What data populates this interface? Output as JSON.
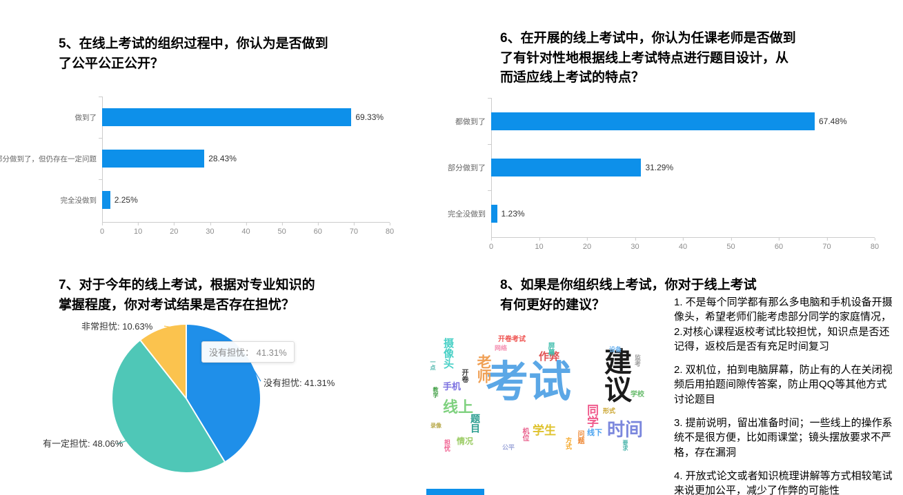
{
  "page": {
    "background": "#ffffff"
  },
  "chart_data": [
    {
      "id": "q5",
      "type": "bar",
      "orientation": "horizontal",
      "title": "5、在线上考试的组织过程中，你认为是否做到\n了公平公正公开？",
      "categories": [
        "做到了",
        "部分做到了，但仍存在一定问题",
        "完全没做到"
      ],
      "values": [
        69.33,
        28.43,
        2.25
      ],
      "value_labels": [
        "69.33%",
        "28.43%",
        "2.25%"
      ],
      "xlim": [
        0,
        80
      ],
      "xticks": [
        "0",
        "10",
        "20",
        "30",
        "40",
        "50",
        "60",
        "70",
        "80"
      ],
      "grid": false,
      "bar_color": "#0d90ea"
    },
    {
      "id": "q6",
      "type": "bar",
      "orientation": "horizontal",
      "title": "6、在开展的线上考试中，你认为任课老师是否做到\n了有针对性地根据线上考试特点进行题目设计，从\n而适应线上考试的特点？",
      "categories": [
        "都做到了",
        "部分做到了",
        "完全没做到"
      ],
      "values": [
        67.48,
        31.29,
        1.23
      ],
      "value_labels": [
        "67.48%",
        "31.29%",
        "1.23%"
      ],
      "xlim": [
        0,
        80
      ],
      "xticks": [
        "0",
        "10",
        "20",
        "30",
        "40",
        "50",
        "60",
        "70",
        "80"
      ],
      "grid": false,
      "bar_color": "#0d90ea"
    },
    {
      "id": "q7",
      "type": "pie",
      "title": "7、对于今年的线上考试，根据对专业知识的\n掌握程度，你对考试结果是否存在担忧？",
      "slices": [
        {
          "label": "没有担忧",
          "value": 41.31,
          "display": "没有担忧: 41.31%",
          "color": "#1f8fe9"
        },
        {
          "label": "有一定担忧",
          "value": 48.06,
          "display": "有一定担忧: 48.06%",
          "color": "#4fc7b7"
        },
        {
          "label": "非常担忧",
          "value": 10.63,
          "display": "非常担忧: 10.63%",
          "color": "#fbc34e"
        }
      ],
      "start_angle_deg": 0,
      "tooltip": "没有担忧： 41.31%"
    },
    {
      "id": "q8",
      "type": "wordcloud",
      "title": "8、如果是你组织线上考试，你对于线上考试\n有何更好的建议？",
      "words": [
        {
          "text": "考试",
          "x": 86,
          "y": 46,
          "size": 62,
          "color": "#5ba7e6",
          "vertical": false
        },
        {
          "text": "建议",
          "x": 254,
          "y": 26,
          "size": 40,
          "color": "#1b1b1b",
          "vertical": true
        },
        {
          "text": "时间",
          "x": 262,
          "y": 132,
          "size": 26,
          "color": "#7b87dd",
          "vertical": false
        },
        {
          "text": "老师",
          "x": 72,
          "y": 36,
          "size": 21,
          "color": "#f0a055",
          "vertical": true
        },
        {
          "text": "线上",
          "x": 24,
          "y": 102,
          "size": 22,
          "color": "#7fd17f",
          "vertical": false
        },
        {
          "text": "同学",
          "x": 231,
          "y": 108,
          "size": 17,
          "color": "#f05a8c",
          "vertical": true
        },
        {
          "text": "学生",
          "x": 154,
          "y": 138,
          "size": 17,
          "color": "#dfc22c",
          "vertical": false
        },
        {
          "text": "作弊",
          "x": 163,
          "y": 32,
          "size": 15,
          "color": "#e05252",
          "vertical": false
        },
        {
          "text": "摄像头",
          "x": 24,
          "y": 12,
          "size": 15,
          "color": "#49d0c6",
          "vertical": true
        },
        {
          "text": "手机",
          "x": 24,
          "y": 76,
          "size": 13,
          "color": "#7b70e0",
          "vertical": false
        },
        {
          "text": "题目",
          "x": 64,
          "y": 122,
          "size": 14,
          "color": "#2a9d8f",
          "vertical": true
        },
        {
          "text": "开卷考试",
          "x": 104,
          "y": 10,
          "size": 10,
          "color": "#ef5350",
          "vertical": false
        },
        {
          "text": "网络",
          "x": 99,
          "y": 23,
          "size": 9,
          "color": "#f48fb1",
          "vertical": false
        },
        {
          "text": "情况",
          "x": 44,
          "y": 156,
          "size": 12,
          "color": "#9ccc65",
          "vertical": false
        },
        {
          "text": "公平",
          "x": 110,
          "y": 167,
          "size": 9,
          "color": "#9fa8da",
          "vertical": false
        },
        {
          "text": "线下",
          "x": 233,
          "y": 145,
          "size": 11,
          "color": "#4aa3f0",
          "vertical": false
        },
        {
          "text": "形式",
          "x": 256,
          "y": 114,
          "size": 9,
          "color": "#c9a227",
          "vertical": false
        },
        {
          "text": "设备",
          "x": 265,
          "y": 25,
          "size": 9,
          "color": "#6bb2ef",
          "vertical": false
        },
        {
          "text": "学校",
          "x": 296,
          "y": 90,
          "size": 10,
          "color": "#66bb6a",
          "vertical": false
        },
        {
          "text": "开卷",
          "x": 49,
          "y": 57,
          "size": 10,
          "color": "#3a3a3a",
          "vertical": true
        },
        {
          "text": "录像",
          "x": 6,
          "y": 136,
          "size": 8,
          "color": "#b8a94a",
          "vertical": false
        },
        {
          "text": "担忧",
          "x": 25,
          "y": 159,
          "size": 9,
          "color": "#f06292",
          "vertical": true
        },
        {
          "text": "机位",
          "x": 137,
          "y": 142,
          "size": 10,
          "color": "#e85d8a",
          "vertical": true
        },
        {
          "text": "方式",
          "x": 201,
          "y": 156,
          "size": 9,
          "color": "#f5a623",
          "vertical": true
        },
        {
          "text": "问题",
          "x": 217,
          "y": 146,
          "size": 10,
          "color": "#ef8b3a",
          "vertical": true
        },
        {
          "text": "监考",
          "x": 301,
          "y": 36,
          "size": 9,
          "color": "#9e9e9e",
          "vertical": true
        },
        {
          "text": "一点",
          "x": 5,
          "y": 43,
          "size": 8,
          "color": "#4db6ac",
          "vertical": true
        },
        {
          "text": "教学",
          "x": 9,
          "y": 83,
          "size": 8,
          "color": "#43a047",
          "vertical": true
        },
        {
          "text": "屏幕",
          "x": 174,
          "y": 18,
          "size": 10,
          "color": "#46c0b0",
          "vertical": true
        },
        {
          "text": "要求",
          "x": 284,
          "y": 160,
          "size": 8,
          "color": "#4db6ac",
          "vertical": true
        }
      ],
      "answers": [
        "1. 不是每个同学都有那么多电脑和手机设备开摄像头，希望老师们能考虑部分同学的家庭情况，2.对核心课程返校考试比较担忧，知识点是否还记得，返校后是否有充足时间复习",
        "2. 双机位，拍到电脑屏幕，防止有的人在关闭视频后用拍题间隙传答案，防止用QQ等其他方式讨论题目",
        "3. 提前说明，留出准备时间；一些线上的操作系统不是很方便，比如雨课堂；镜头摆放要求不严格，存在漏洞",
        "4. 开放式论文或者知识梳理讲解等方式相较笔试来说更加公平，减少了作弊的可能性"
      ]
    }
  ]
}
